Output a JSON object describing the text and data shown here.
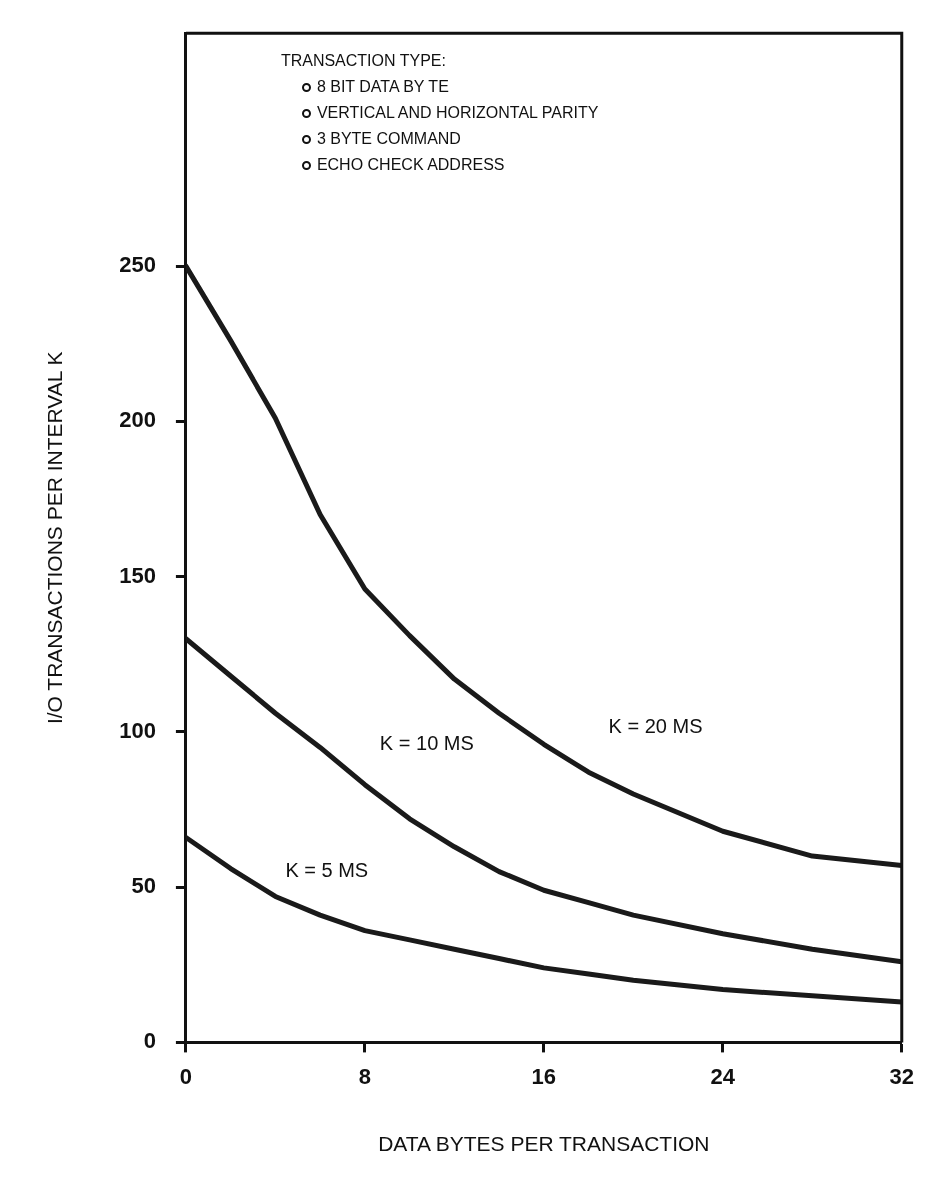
{
  "chart_data": {
    "type": "line",
    "xlabel": "DATA BYTES PER TRANSACTION",
    "ylabel": "I/O TRANSACTIONS PER INTERVAL K",
    "x": [
      0,
      2,
      4,
      6,
      8,
      10,
      12,
      14,
      16,
      18,
      20,
      24,
      28,
      32
    ],
    "series": [
      {
        "name": "K = 20 MS",
        "color": "#1a1a1a",
        "values": [
          250,
          226,
          201,
          170,
          146,
          131,
          117,
          106,
          96,
          87,
          80,
          68,
          60,
          57
        ]
      },
      {
        "name": "K = 10 MS",
        "color": "#1a1a1a",
        "values": [
          130,
          118,
          106,
          95,
          83,
          72,
          63,
          55,
          49,
          45,
          41,
          35,
          30,
          26
        ]
      },
      {
        "name": "K = 5 MS",
        "color": "#1a1a1a",
        "values": [
          66,
          56,
          47,
          41,
          36,
          33,
          30,
          27,
          24,
          22,
          20,
          17,
          15,
          13
        ]
      }
    ],
    "annotations": [
      "TRANSACTION TYPE:",
      "8 BIT DATA BY TE",
      "VERTICAL AND HORIZONTAL PARITY",
      "3 BYTE COMMAND",
      "ECHO CHECK ADDRESS"
    ],
    "xlim": [
      0,
      32
    ],
    "xticks": [
      0,
      8,
      16,
      24,
      32
    ],
    "ylim": [
      0,
      325
    ],
    "yticks": [
      0,
      50,
      100,
      150,
      200,
      250
    ],
    "grid": false,
    "legend": false,
    "marker": "none",
    "line_style": "solid"
  }
}
